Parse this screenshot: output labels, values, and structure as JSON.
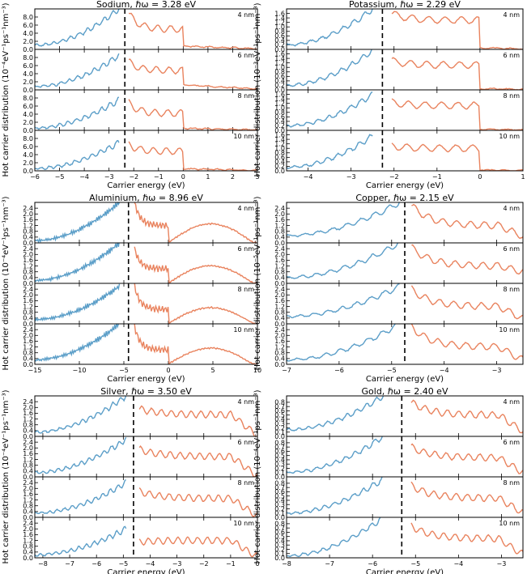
{
  "figure": {
    "ylabel": "Hot carrier distribution",
    "sizes": [
      "4 nm",
      "6 nm",
      "8 nm",
      "10 nm"
    ],
    "colors": {
      "electrons": "#e9835e",
      "holes": "#5b9ec8",
      "axis": "#000000",
      "fermi_line": "#000000"
    }
  },
  "chart_data": [
    {
      "type": "line",
      "metal": "Sodium",
      "title": "Sodium, ℏω = 3.28 eV",
      "xlabel": "Carrier energy (eV)",
      "unit": "(10⁻⁴eV⁻¹ps⁻¹nm⁻³)",
      "xlim": [
        -6,
        3
      ],
      "xticks": [
        -6,
        -5,
        -4,
        -3,
        -2,
        -1,
        0,
        1,
        2,
        3
      ],
      "ylim": [
        0,
        10
      ],
      "yticks": [
        0.0,
        2.0,
        4.0,
        6.0,
        8.0
      ],
      "ytick_labels": [
        "0.0",
        "2.0",
        "4.0",
        "6.0",
        "8.0"
      ],
      "divider_energy": -2.36,
      "holes_range": [
        -6.0,
        -2.6
      ],
      "electrons_range": [
        -2.2,
        3.0
      ],
      "fermi_step": 0.0,
      "osc": 10,
      "panels": [
        {
          "label": "4 nm",
          "hole_start": 1.0,
          "hole_end": 10.0,
          "elec_start": 9.0,
          "elec_mid": 5.0,
          "elec_tail": 0.8
        },
        {
          "label": "6 nm",
          "hole_start": 0.8,
          "hole_end": 8.5,
          "elec_start": 7.0,
          "elec_mid": 4.8,
          "elec_tail": 1.2
        },
        {
          "label": "8 nm",
          "hole_start": 0.6,
          "hole_end": 7.5,
          "elec_start": 6.8,
          "elec_mid": 4.2,
          "elec_tail": 0.5
        },
        {
          "label": "10 nm",
          "hole_start": 0.6,
          "hole_end": 7.0,
          "elec_start": 6.5,
          "elec_mid": 4.8,
          "elec_tail": 0.5
        }
      ]
    },
    {
      "type": "line",
      "metal": "Potassium",
      "title": "Potassium, ℏω = 2.29 eV",
      "xlabel": "Carrier energy (eV)",
      "unit": "(10⁻³eV⁻¹ps⁻¹nm⁻³)",
      "xlim": [
        -4.5,
        1
      ],
      "xticks": [
        -4,
        -3,
        -2,
        -1,
        0,
        1
      ],
      "ylim": [
        0,
        1.8
      ],
      "yticks": [
        0.0,
        0.2,
        0.4,
        0.6,
        0.8,
        1.0,
        1.2,
        1.4,
        1.6
      ],
      "ytick_labels": [
        "0.0",
        "0.2",
        "0.4",
        "0.6",
        "0.8",
        "1.0",
        "1.2",
        "1.4",
        "1.6"
      ],
      "divider_energy": -2.27,
      "holes_range": [
        -4.5,
        -2.5
      ],
      "electrons_range": [
        -2.05,
        1.0
      ],
      "fermi_step": 0.0,
      "osc": 8,
      "panels": [
        {
          "label": "4 nm",
          "hole_start": 0.2,
          "hole_end": 1.8,
          "elec_start": 1.6,
          "elec_mid": 1.3,
          "elec_tail": 0.06
        },
        {
          "label": "6 nm",
          "hole_start": 0.2,
          "hole_end": 1.75,
          "elec_start": 1.3,
          "elec_mid": 1.1,
          "elec_tail": 0.05
        },
        {
          "label": "8 nm",
          "hole_start": 0.2,
          "hole_end": 1.6,
          "elec_start": 1.25,
          "elec_mid": 1.1,
          "elec_tail": 0.04
        },
        {
          "label": "10 nm",
          "hole_start": 0.15,
          "hole_end": 1.55,
          "elec_start": 1.1,
          "elec_mid": 1.0,
          "elec_tail": 0.03
        }
      ]
    },
    {
      "type": "line",
      "metal": "Aluminium",
      "title": "Aluminium, ℏω = 8.96 eV",
      "xlabel": "Carrier energy (eV)",
      "unit": "(10⁻⁴eV⁻¹ps⁻¹nm⁻³)",
      "xlim": [
        -15,
        10
      ],
      "xticks": [
        -15,
        -10,
        -5,
        0,
        5,
        10
      ],
      "ylim": [
        0,
        2.8
      ],
      "yticks": [
        0.0,
        0.4,
        0.8,
        1.2,
        1.6,
        2.0,
        2.4
      ],
      "ytick_labels": [
        "0.0",
        "0.4",
        "0.8",
        "1.2",
        "1.6",
        "2.0",
        "2.4"
      ],
      "divider_energy": -4.48,
      "holes_range": [
        -15.0,
        -5.5
      ],
      "electrons_range": [
        -3.8,
        10.0
      ],
      "fermi_step": 0.0,
      "osc": 40,
      "panels": [
        {
          "label": "4 nm",
          "hole_start": 0.15,
          "hole_end": 2.8,
          "elec_start": 2.8,
          "elec_mid": 1.2,
          "elec_tail": 1.3
        },
        {
          "label": "6 nm",
          "hole_start": 0.2,
          "hole_end": 2.8,
          "elec_start": 2.4,
          "elec_mid": 1.0,
          "elec_tail": 1.2
        },
        {
          "label": "8 nm",
          "hole_start": 0.3,
          "hole_end": 2.6,
          "elec_start": 2.6,
          "elec_mid": 1.0,
          "elec_tail": 1.1
        },
        {
          "label": "10 nm",
          "hole_start": 0.3,
          "hole_end": 2.8,
          "elec_start": 2.6,
          "elec_mid": 1.0,
          "elec_tail": 1.1
        }
      ]
    },
    {
      "type": "line",
      "metal": "Copper",
      "title": "Copper, ℏω = 2.15 eV",
      "xlabel": "Carrier energy (eV)",
      "unit": "(10⁻⁵eV⁻¹ps⁻¹nm⁻³)",
      "xlim": [
        -7,
        -2.5
      ],
      "xticks": [
        -7,
        -6,
        -5,
        -4,
        -3
      ],
      "ylim": [
        0,
        2.8
      ],
      "yticks": [
        0.0,
        0.4,
        0.8,
        1.2,
        1.6,
        2.0,
        2.4
      ],
      "ytick_labels": [
        "0.0",
        "0.4",
        "0.8",
        "1.2",
        "1.6",
        "2.0",
        "2.4"
      ],
      "divider_energy": -4.75,
      "holes_range": [
        -7.0,
        -4.85
      ],
      "electrons_range": [
        -4.62,
        -2.5
      ],
      "fermi_step": null,
      "osc": 8,
      "panels": [
        {
          "label": "4 nm",
          "hole_start": 0.5,
          "hole_end": 2.8,
          "elec_start": 2.6,
          "elec_mid": 1.2,
          "elec_tail": 0.45
        },
        {
          "label": "6 nm",
          "hole_start": 0.4,
          "hole_end": 2.8,
          "elec_start": 2.5,
          "elec_mid": 1.2,
          "elec_tail": 0.8
        },
        {
          "label": "8 nm",
          "hole_start": 0.5,
          "hole_end": 2.6,
          "elec_start": 2.4,
          "elec_mid": 1.2,
          "elec_tail": 0.35
        },
        {
          "label": "10 nm",
          "hole_start": 0.3,
          "hole_end": 2.8,
          "elec_start": 2.6,
          "elec_mid": 1.2,
          "elec_tail": 0.3
        }
      ]
    },
    {
      "type": "line",
      "metal": "Silver",
      "title": "Silver, ℏω = 3.50 eV",
      "xlabel": "Carrier energy (eV)",
      "unit": "(10⁻⁴eV⁻¹ps⁻¹nm⁻³)",
      "xlim": [
        -8.3,
        0
      ],
      "xticks": [
        -8,
        -7,
        -6,
        -5,
        -4,
        -3,
        -2,
        -1,
        0
      ],
      "ylim": [
        0,
        2.8
      ],
      "yticks": [
        0.0,
        0.4,
        0.8,
        1.2,
        1.6,
        2.0,
        2.4
      ],
      "ytick_labels": [
        "0.0",
        "0.4",
        "0.8",
        "1.2",
        "1.6",
        "2.0",
        "2.4"
      ],
      "divider_energy": -4.62,
      "holes_range": [
        -8.3,
        -4.9
      ],
      "electrons_range": [
        -4.4,
        0.0
      ],
      "fermi_step": null,
      "osc": 12,
      "panels": [
        {
          "label": "4 nm",
          "hole_start": 0.3,
          "hole_end": 2.8,
          "elec_start": 1.9,
          "elec_mid": 1.5,
          "elec_tail": 0.05
        },
        {
          "label": "6 nm",
          "hole_start": 0.3,
          "hole_end": 2.6,
          "elec_start": 1.9,
          "elec_mid": 1.4,
          "elec_tail": 0.05
        },
        {
          "label": "8 nm",
          "hole_start": 0.3,
          "hole_end": 2.4,
          "elec_start": 1.8,
          "elec_mid": 1.3,
          "elec_tail": 0.05
        },
        {
          "label": "10 nm",
          "hole_start": 0.2,
          "hole_end": 2.0,
          "elec_start": 1.1,
          "elec_mid": 1.2,
          "elec_tail": 0.05
        }
      ]
    },
    {
      "type": "line",
      "metal": "Gold",
      "title": "Gold, ℏω = 2.40 eV",
      "xlabel": "Carrier energy (eV)",
      "unit": "(10⁻⁴eV⁻¹ps⁻¹nm⁻³)",
      "xlim": [
        -8,
        -2.5
      ],
      "xticks": [
        -8,
        -7,
        -6,
        -5,
        -4,
        -3
      ],
      "ylim": [
        0,
        0.95
      ],
      "yticks": [
        0.0,
        0.1,
        0.2,
        0.3,
        0.4,
        0.5,
        0.6,
        0.7,
        0.8
      ],
      "ytick_labels": [
        "0.0",
        "0.1",
        "0.2",
        "0.3",
        "0.4",
        "0.5",
        "0.6",
        "0.7",
        "0.8"
      ],
      "divider_energy": -5.32,
      "holes_range": [
        -8.0,
        -5.75
      ],
      "electrons_range": [
        -5.1,
        -2.5
      ],
      "fermi_step": null,
      "osc": 10,
      "panels": [
        {
          "label": "4 nm",
          "hole_start": 0.15,
          "hole_end": 0.95,
          "elec_start": 0.8,
          "elec_mid": 0.5,
          "elec_tail": 0.12
        },
        {
          "label": "6 nm",
          "hole_start": 0.1,
          "hole_end": 0.95,
          "elec_start": 0.7,
          "elec_mid": 0.45,
          "elec_tail": 0.1
        },
        {
          "label": "8 nm",
          "hole_start": 0.1,
          "hole_end": 0.9,
          "elec_start": 0.75,
          "elec_mid": 0.45,
          "elec_tail": 0.1
        },
        {
          "label": "10 nm",
          "hole_start": 0.05,
          "hole_end": 0.95,
          "elec_start": 0.75,
          "elec_mid": 0.45,
          "elec_tail": 0.08
        }
      ]
    }
  ]
}
